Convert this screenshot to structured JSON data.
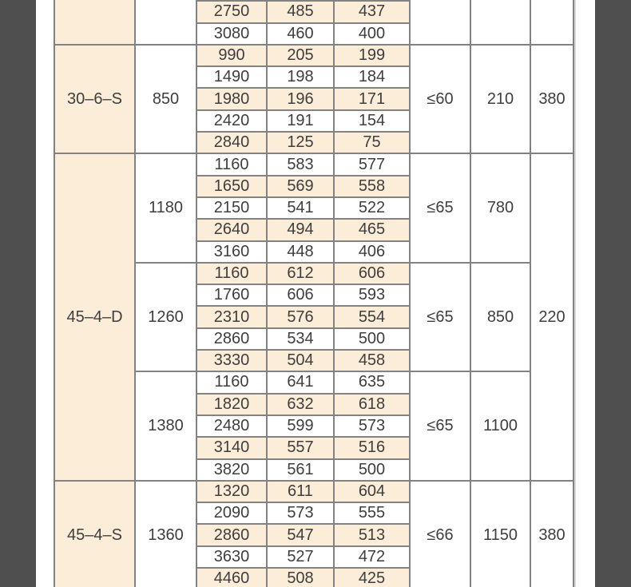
{
  "viewer": {
    "margin_color": "#4f4f4f",
    "page_color": "#ffffff"
  },
  "table": {
    "colors": {
      "stripe": "#fcedd8",
      "grid_line": "#828282",
      "text": "#3e3e3e",
      "edge_shadow": "#d8d8d8"
    },
    "sections": [
      {
        "model": "",
        "voltage": "",
        "subs": [
          {
            "rpm": "",
            "noise": "",
            "power": "",
            "rows": [
              [
                "",
                "",
                ""
              ],
              [
                "2750",
                "485",
                "437"
              ],
              [
                "3080",
                "460",
                "400"
              ]
            ]
          }
        ]
      },
      {
        "model": "30–6–S",
        "voltage": "380",
        "subs": [
          {
            "rpm": "850",
            "noise": "≤60",
            "power": "210",
            "rows": [
              [
                "990",
                "205",
                "199"
              ],
              [
                "1490",
                "198",
                "184"
              ],
              [
                "1980",
                "196",
                "171"
              ],
              [
                "2420",
                "191",
                "154"
              ],
              [
                "2840",
                "125",
                "75"
              ]
            ]
          }
        ]
      },
      {
        "model": "45–4–D",
        "voltage": "220",
        "subs": [
          {
            "rpm": "1180",
            "noise": "≤65",
            "power": "780",
            "rows": [
              [
                "1160",
                "583",
                "577"
              ],
              [
                "1650",
                "569",
                "558"
              ],
              [
                "2150",
                "541",
                "522"
              ],
              [
                "2640",
                "494",
                "465"
              ],
              [
                "3160",
                "448",
                "406"
              ]
            ]
          },
          {
            "rpm": "1260",
            "noise": "≤65",
            "power": "850",
            "rows": [
              [
                "1160",
                "612",
                "606"
              ],
              [
                "1760",
                "606",
                "593"
              ],
              [
                "2310",
                "576",
                "554"
              ],
              [
                "2860",
                "534",
                "500"
              ],
              [
                "3330",
                "504",
                "458"
              ]
            ]
          },
          {
            "rpm": "1380",
            "noise": "≤65",
            "power": "1100",
            "rows": [
              [
                "1160",
                "641",
                "635"
              ],
              [
                "1820",
                "632",
                "618"
              ],
              [
                "2480",
                "599",
                "573"
              ],
              [
                "3140",
                "557",
                "516"
              ],
              [
                "3820",
                "561",
                "500"
              ]
            ]
          }
        ]
      },
      {
        "model": "45–4–S",
        "voltage": "380",
        "subs": [
          {
            "rpm": "1360",
            "noise": "≤66",
            "power": "1150",
            "rows": [
              [
                "1320",
                "611",
                "604"
              ],
              [
                "2090",
                "573",
                "555"
              ],
              [
                "2860",
                "547",
                "513"
              ],
              [
                "3630",
                "527",
                "472"
              ],
              [
                "4460",
                "508",
                "425"
              ]
            ]
          }
        ]
      }
    ]
  }
}
